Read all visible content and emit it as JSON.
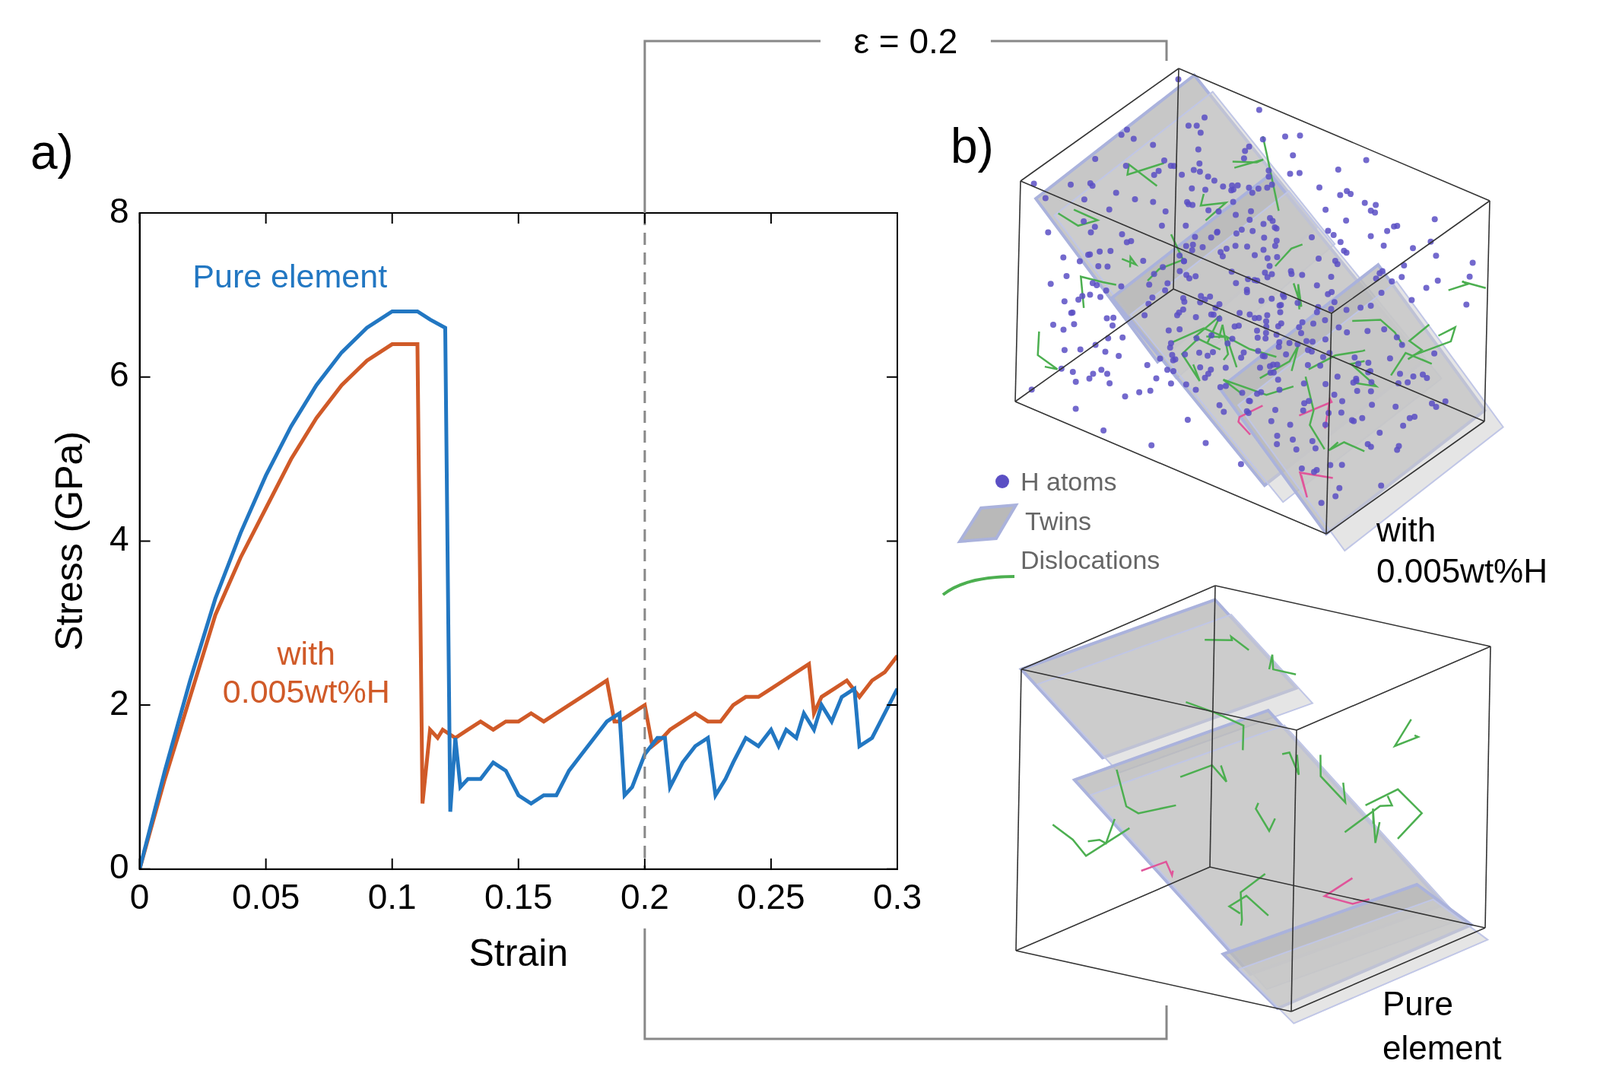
{
  "chart_data": {
    "type": "line",
    "x_label": "Strain",
    "y_label": "Stress (GPa)",
    "xlim": [
      0,
      0.3
    ],
    "xticks": [
      0,
      0.05,
      0.1,
      0.15,
      0.2,
      0.25,
      0.3
    ],
    "ylim": [
      0,
      8
    ],
    "yticks": [
      0,
      2,
      4,
      6,
      8
    ],
    "grid": false,
    "series": [
      {
        "name": "Pure element",
        "color": "#2277c2",
        "x": [
          0,
          0.01,
          0.02,
          0.03,
          0.04,
          0.05,
          0.06,
          0.07,
          0.08,
          0.09,
          0.1,
          0.11,
          0.115,
          0.121,
          0.123,
          0.125,
          0.127,
          0.13,
          0.135,
          0.14,
          0.145,
          0.15,
          0.155,
          0.16,
          0.165,
          0.17,
          0.175,
          0.18,
          0.185,
          0.19,
          0.192,
          0.195,
          0.2,
          0.205,
          0.208,
          0.21,
          0.215,
          0.22,
          0.225,
          0.228,
          0.232,
          0.235,
          0.24,
          0.245,
          0.25,
          0.253,
          0.256,
          0.26,
          0.263,
          0.267,
          0.27,
          0.274,
          0.278,
          0.283,
          0.285,
          0.29,
          0.295,
          0.3
        ],
        "values": [
          0,
          1.2,
          2.3,
          3.3,
          4.1,
          4.8,
          5.4,
          5.9,
          6.3,
          6.6,
          6.8,
          6.8,
          6.7,
          6.6,
          0.7,
          1.6,
          1.0,
          1.1,
          1.1,
          1.3,
          1.2,
          0.9,
          0.8,
          0.9,
          0.9,
          1.2,
          1.4,
          1.6,
          1.8,
          1.9,
          0.9,
          1.0,
          1.4,
          1.6,
          1.6,
          1.0,
          1.3,
          1.5,
          1.6,
          0.9,
          1.1,
          1.3,
          1.6,
          1.5,
          1.7,
          1.5,
          1.7,
          1.6,
          1.9,
          1.7,
          2.0,
          1.8,
          2.1,
          2.2,
          1.5,
          1.6,
          1.9,
          2.2
        ]
      },
      {
        "name": "with 0.005wt%H",
        "color": "#d05a28",
        "x": [
          0,
          0.01,
          0.02,
          0.03,
          0.04,
          0.05,
          0.06,
          0.07,
          0.08,
          0.09,
          0.1,
          0.105,
          0.11,
          0.112,
          0.115,
          0.118,
          0.12,
          0.125,
          0.13,
          0.135,
          0.14,
          0.145,
          0.15,
          0.155,
          0.16,
          0.165,
          0.17,
          0.175,
          0.18,
          0.185,
          0.188,
          0.19,
          0.195,
          0.2,
          0.203,
          0.207,
          0.21,
          0.215,
          0.22,
          0.225,
          0.23,
          0.235,
          0.24,
          0.245,
          0.25,
          0.255,
          0.26,
          0.265,
          0.267,
          0.27,
          0.275,
          0.28,
          0.285,
          0.29,
          0.295,
          0.3
        ],
        "values": [
          0,
          1.1,
          2.1,
          3.1,
          3.8,
          4.4,
          5.0,
          5.5,
          5.9,
          6.2,
          6.4,
          6.4,
          6.4,
          0.8,
          1.7,
          1.6,
          1.7,
          1.6,
          1.7,
          1.8,
          1.7,
          1.8,
          1.8,
          1.9,
          1.8,
          1.9,
          2.0,
          2.1,
          2.2,
          2.3,
          1.8,
          1.8,
          1.9,
          2.0,
          1.5,
          1.6,
          1.7,
          1.8,
          1.9,
          1.8,
          1.8,
          2.0,
          2.1,
          2.1,
          2.2,
          2.3,
          2.4,
          2.5,
          1.9,
          2.1,
          2.2,
          2.3,
          2.1,
          2.3,
          2.4,
          2.6
        ]
      }
    ],
    "annotations": [
      {
        "x": 0.2,
        "line_style": "dashed"
      }
    ]
  },
  "figure": {
    "panel_labels": [
      "a)",
      "b)"
    ],
    "bracket_label": "ε = 0.2",
    "key": [
      {
        "label": "H atoms",
        "color": "#5b4fc4"
      },
      {
        "label": "Twins",
        "color": "#b9b9b9"
      },
      {
        "label": "Dislocations",
        "color": "#4caf50"
      }
    ],
    "renders": [
      {
        "label": "with 0.005wt%H",
        "h_atoms": true
      },
      {
        "label": "Pure element",
        "h_atoms": false
      }
    ]
  }
}
